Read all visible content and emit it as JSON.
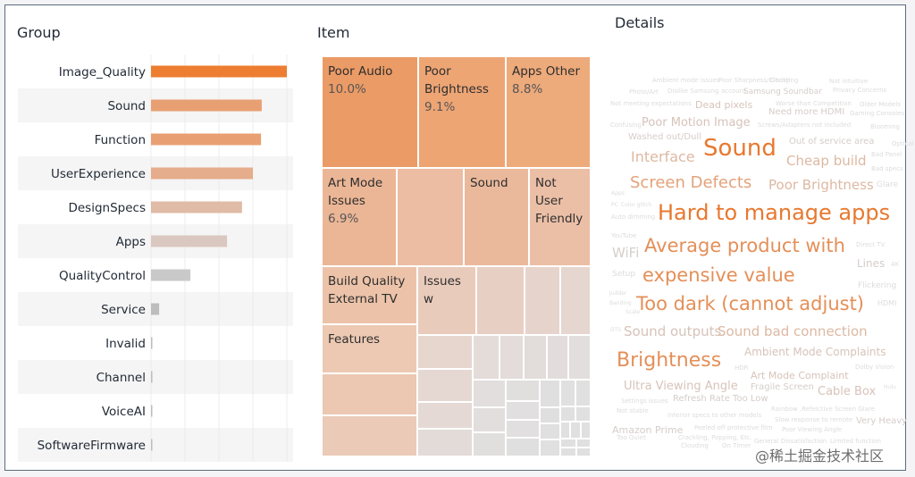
{
  "panels": {
    "group_title": "Group",
    "item_title": "Item",
    "details_title": "Details"
  },
  "colors": {
    "accent": "#ed7d31",
    "grey_low": "#c8c8c8",
    "row_band": "#f5f5f5",
    "gridline": "#ececec"
  },
  "chart_data": [
    {
      "type": "bar",
      "orientation": "horizontal",
      "title": "Group",
      "categories": [
        "Image_Quality",
        "Sound",
        "Function",
        "UserExperience",
        "DesignSpecs",
        "Apps",
        "QualityControl",
        "Service",
        "Invalid",
        "Channel",
        "VoiceAI",
        "SoftwareFirmware"
      ],
      "values": [
        100,
        81.5,
        81,
        75,
        67,
        56,
        29,
        6,
        1,
        1,
        0.4,
        0.3
      ],
      "value_unit": "relative (% of max)",
      "bar_colors": [
        "#ed7d31",
        "#e8a073",
        "#e8a073",
        "#e5ad8b",
        "#e0bba5",
        "#dac8c0",
        "#c9c9c9",
        "#bdbdbd",
        "#bdbdbd",
        "#bdbdbd",
        "#bdbdbd",
        "#bdbdbd"
      ],
      "xlabel": "",
      "ylabel": "",
      "grid": true,
      "axis_ticks_visible": false
    },
    {
      "type": "treemap",
      "title": "Item",
      "labeled_items": [
        {
          "name": "Poor Audio",
          "pct": "10.0%",
          "share": 10.0
        },
        {
          "name": "Poor Brightness",
          "pct": "9.1%",
          "share": 9.1
        },
        {
          "name": "Apps Other",
          "pct": "8.8%",
          "share": 8.8
        },
        {
          "name": "Art Mode Issues",
          "pct": "6.9%",
          "share": 6.9
        },
        {
          "name": "",
          "pct": "",
          "share": 6.1
        },
        {
          "name": "Sound",
          "pct": "",
          "share": 5.9
        },
        {
          "name": "Not User Friendly",
          "pct": "",
          "share": 5.5
        },
        {
          "name": "Build Quality External TV",
          "pct": "",
          "share": 5.0
        },
        {
          "name": "Features",
          "pct": "",
          "share": 3.9
        },
        {
          "name": "Issues w",
          "pct": "",
          "share": 3.0
        }
      ]
    },
    {
      "type": "wordcloud",
      "title": "Details",
      "words": [
        {
          "text": "Ambient mode issues",
          "weight": 1
        },
        {
          "text": "Poor Sharpness/Clarity",
          "weight": 1
        },
        {
          "text": "Ghosting",
          "weight": 1
        },
        {
          "text": "Not intuitive",
          "weight": 1
        },
        {
          "text": "Photo/Art",
          "weight": 1
        },
        {
          "text": "Dislike Samsung account",
          "weight": 1
        },
        {
          "text": "Samsung Soundbar",
          "weight": 2
        },
        {
          "text": "Privacy Concerns",
          "weight": 1
        },
        {
          "text": "Not meeting expectations",
          "weight": 1
        },
        {
          "text": "Dead pixels",
          "weight": 3
        },
        {
          "text": "Worse than Competition",
          "weight": 1
        },
        {
          "text": "Older Models",
          "weight": 1
        },
        {
          "text": "Need more HDMI",
          "weight": 2
        },
        {
          "text": "Gaming Consoles",
          "weight": 1
        },
        {
          "text": "Confusing",
          "weight": 1
        },
        {
          "text": "Poor Motion Image",
          "weight": 3
        },
        {
          "text": "Screws/Adapters not included",
          "weight": 1
        },
        {
          "text": "Blooming",
          "weight": 1
        },
        {
          "text": "Washed out/Dull",
          "weight": 2
        },
        {
          "text": "Out of service area",
          "weight": 2
        },
        {
          "text": "Optical",
          "weight": 1
        },
        {
          "text": "Interface",
          "weight": 4
        },
        {
          "text": "Sound",
          "weight": 8
        },
        {
          "text": "Bad Panel",
          "weight": 1
        },
        {
          "text": "Cheap build",
          "weight": 4
        },
        {
          "text": "Bad specs",
          "weight": 1
        },
        {
          "text": "Screen Defects",
          "weight": 5
        },
        {
          "text": "Poor Brightness",
          "weight": 4
        },
        {
          "text": "Glare",
          "weight": 1
        },
        {
          "text": "Apps",
          "weight": 1
        },
        {
          "text": "PC",
          "weight": 1
        },
        {
          "text": "Color glitch",
          "weight": 1
        },
        {
          "text": "Auto dimming",
          "weight": 1
        },
        {
          "text": "Hard to manage apps",
          "weight": 9
        },
        {
          "text": "YouTube",
          "weight": 1
        },
        {
          "text": "WiFi",
          "weight": 2
        },
        {
          "text": "Average product with",
          "weight": 7
        },
        {
          "text": "Direct TV",
          "weight": 1
        },
        {
          "text": "Lines",
          "weight": 2
        },
        {
          "text": "4K",
          "weight": 1
        },
        {
          "text": "Setup",
          "weight": 1
        },
        {
          "text": "expensive value",
          "weight": 7
        },
        {
          "text": "Flickering",
          "weight": 1
        },
        {
          "text": "Judder",
          "weight": 1
        },
        {
          "text": "Banding",
          "weight": 1
        },
        {
          "text": "Scale",
          "weight": 1
        },
        {
          "text": "Too dark (cannot adjust)",
          "weight": 7
        },
        {
          "text": "HDMI",
          "weight": 1
        },
        {
          "text": "DTS",
          "weight": 1
        },
        {
          "text": "Sound outputs",
          "weight": 3
        },
        {
          "text": "Sound bad connection",
          "weight": 4
        },
        {
          "text": "Brightness",
          "weight": 7
        },
        {
          "text": "Ambient Mode Complaints",
          "weight": 3
        },
        {
          "text": "HDR",
          "weight": 1
        },
        {
          "text": "Art Mode Complaint",
          "weight": 3
        },
        {
          "text": "Dolby Vision",
          "weight": 1
        },
        {
          "text": "Ultra Viewing Angle",
          "weight": 3
        },
        {
          "text": "Fragile Screen",
          "weight": 2
        },
        {
          "text": "Cable Box",
          "weight": 3
        },
        {
          "text": "Hulu",
          "weight": 1
        },
        {
          "text": "Settings issues",
          "weight": 1
        },
        {
          "text": "Refresh Rate Too Low",
          "weight": 2
        },
        {
          "text": "Not stable",
          "weight": 1
        },
        {
          "text": "Rainbow ,Refelctive Screen Glare",
          "weight": 1
        },
        {
          "text": "Inferior specs to other models",
          "weight": 1
        },
        {
          "text": "Slow response to remote",
          "weight": 1
        },
        {
          "text": "Very Heavy",
          "weight": 2
        },
        {
          "text": "Amazon Prime",
          "weight": 2
        },
        {
          "text": "Peeled off protective film",
          "weight": 1
        },
        {
          "text": "Poor Viewing Angle",
          "weight": 1
        },
        {
          "text": "Too Quiet",
          "weight": 1
        },
        {
          "text": "Crackling, Popping, Etc.",
          "weight": 1
        },
        {
          "text": "General Dissatisfaction",
          "weight": 1
        },
        {
          "text": "Limited function",
          "weight": 1
        },
        {
          "text": "Clouding",
          "weight": 1
        },
        {
          "text": "On Timer",
          "weight": 1
        }
      ]
    }
  ],
  "watermark": "@稀土掘金技术社区"
}
